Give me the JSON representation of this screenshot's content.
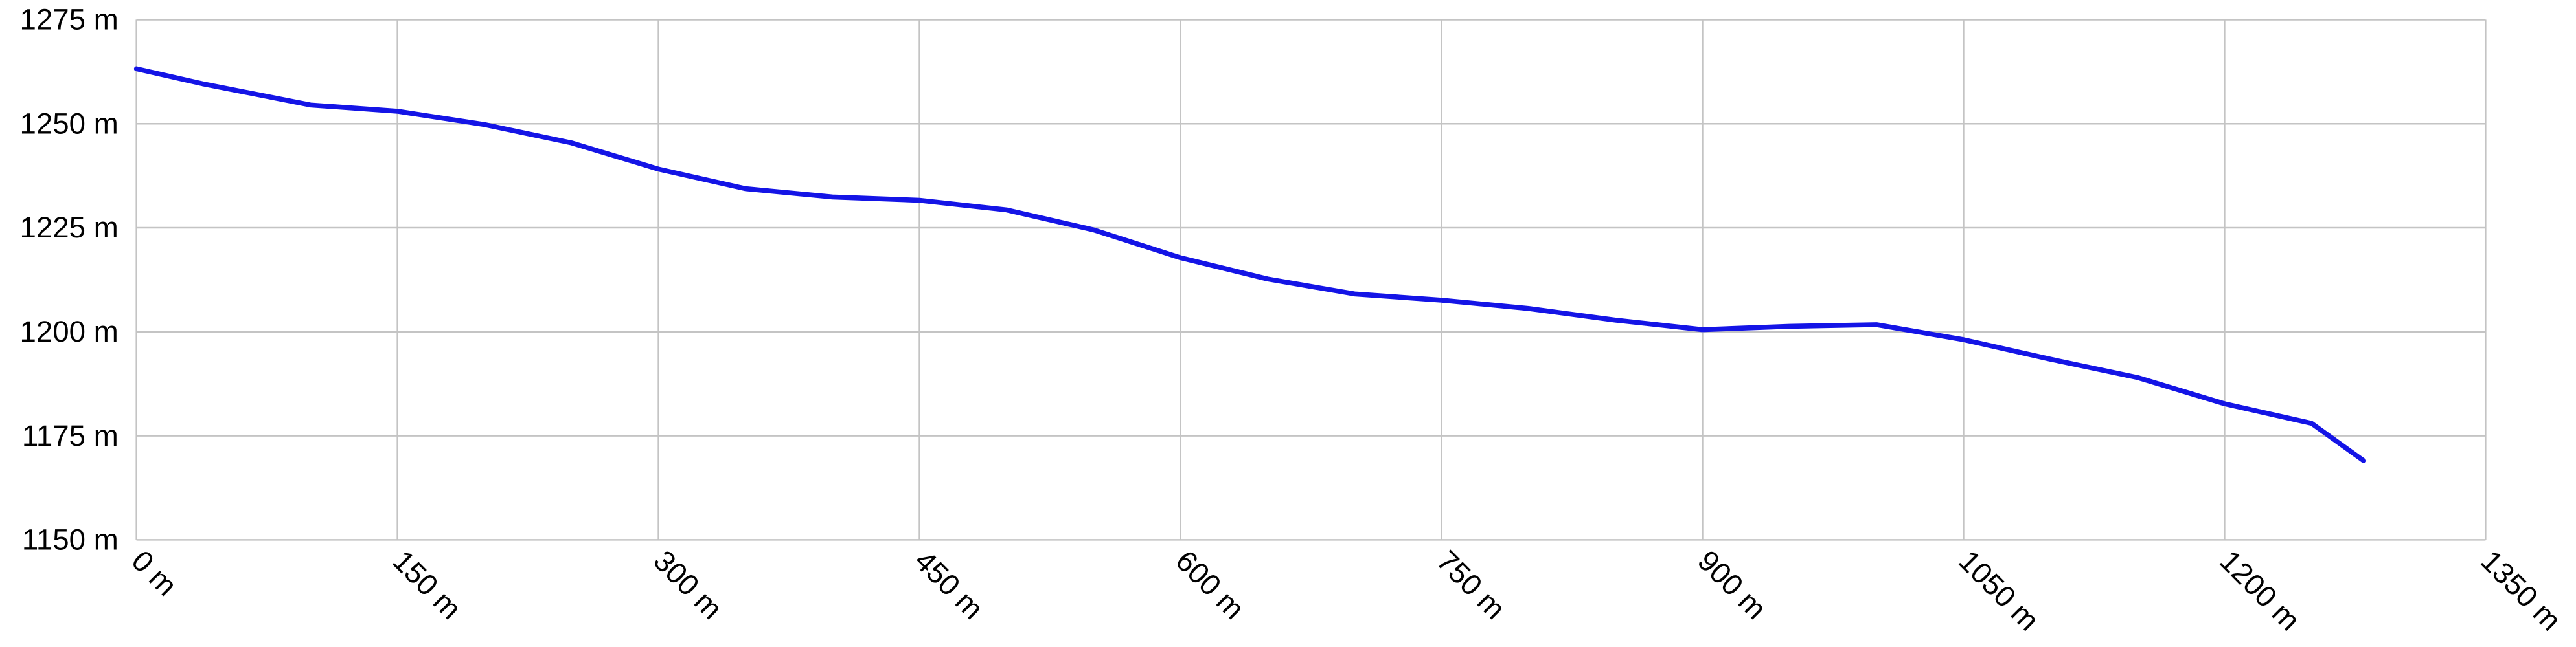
{
  "chart_data": {
    "type": "line",
    "x": [
      0,
      38,
      100,
      150,
      200,
      250,
      300,
      350,
      400,
      450,
      500,
      550,
      600,
      650,
      700,
      750,
      800,
      850,
      900,
      950,
      1000,
      1050,
      1100,
      1150,
      1200,
      1250,
      1280
    ],
    "series": [
      {
        "color": "#1414e6",
        "values": [
          1263.2,
          1259.6,
          1254.5,
          1253,
          1249.8,
          1245.4,
          1239.1,
          1234.4,
          1232.4,
          1231.6,
          1229.3,
          1224.5,
          1217.8,
          1212.7,
          1209.1,
          1207.6,
          1205.6,
          1202.8,
          1200.5,
          1201.3,
          1201.7,
          1198.1,
          1193.4,
          1189,
          1182.7,
          1178,
          1169
        ]
      }
    ],
    "xlim": [
      0,
      1350
    ],
    "xticks": [
      {
        "value": 0,
        "label": "0 m"
      },
      {
        "value": 150,
        "label": "150 m"
      },
      {
        "value": 300,
        "label": "300 m"
      },
      {
        "value": 450,
        "label": "450 m"
      },
      {
        "value": 600,
        "label": "600 m"
      },
      {
        "value": 750,
        "label": "750 m"
      },
      {
        "value": 900,
        "label": "900 m"
      },
      {
        "value": 1050,
        "label": "1050 m"
      },
      {
        "value": 1200,
        "label": "1200 m"
      },
      {
        "value": 1350,
        "label": "1350 m"
      }
    ],
    "ylim": [
      1150,
      1275
    ],
    "yticks": [
      {
        "value": 1150,
        "label": "1150 m"
      },
      {
        "value": 1175,
        "label": "1175 m"
      },
      {
        "value": 1200,
        "label": "1200 m"
      },
      {
        "value": 1225,
        "label": "1225 m"
      },
      {
        "value": 1250,
        "label": "1250 m"
      },
      {
        "value": 1275,
        "label": "1275 m"
      }
    ],
    "grid": true
  }
}
